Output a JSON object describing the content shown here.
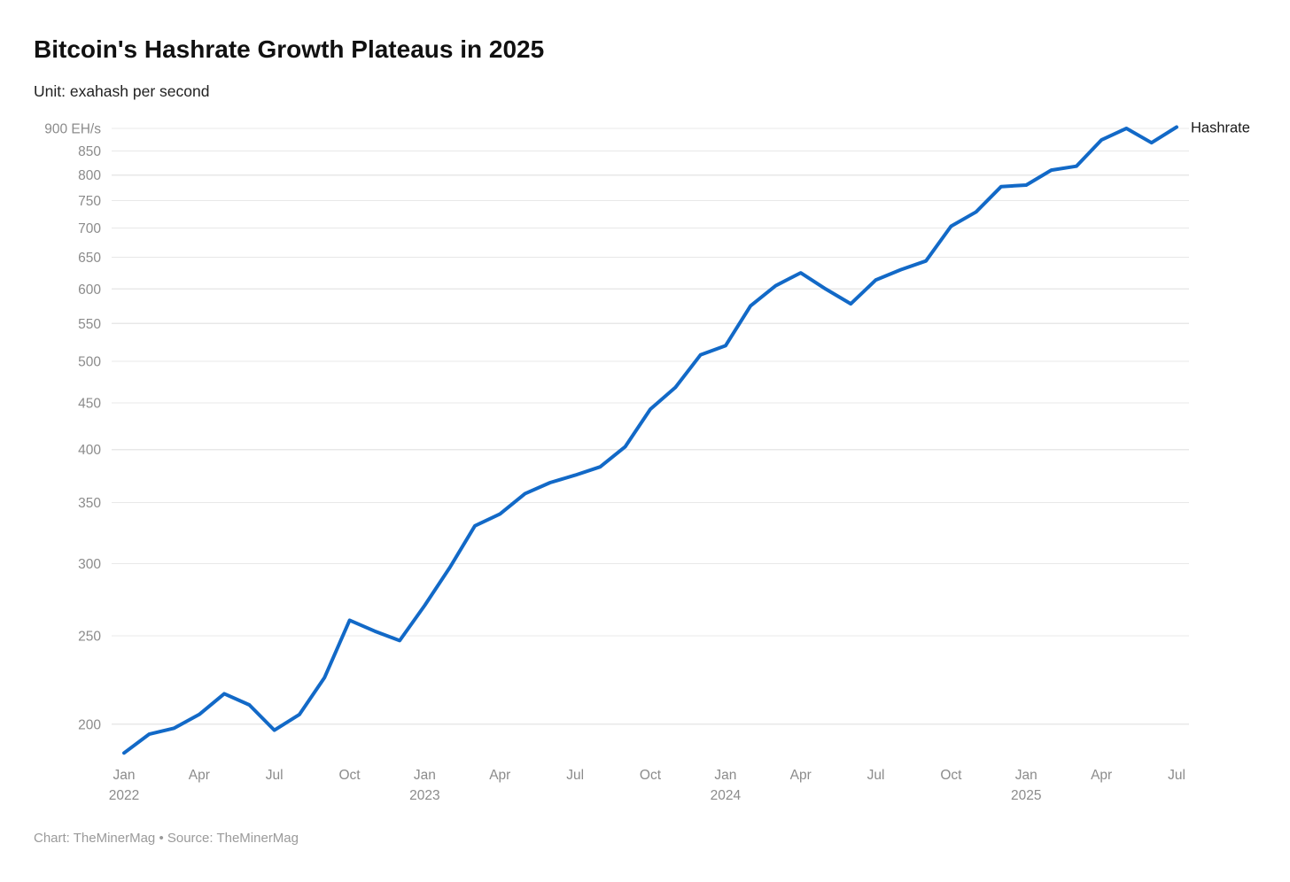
{
  "header": {
    "title": "Bitcoin's Hashrate Growth Plateaus in 2025",
    "subtitle": "Unit: exahash per second"
  },
  "footer": {
    "credit": "Chart: TheMinerMag • Source: TheMinerMag"
  },
  "chart_data": {
    "type": "line",
    "title": "Bitcoin's Hashrate Growth Plateaus in 2025",
    "unit_label": "Unit: exahash per second",
    "ylabel": "EH/s",
    "y_axis": {
      "scale": "log",
      "range_displayed": [
        200,
        900
      ],
      "grid": true,
      "ticks": [
        {
          "value": 900,
          "label": "900 EH/s"
        },
        {
          "value": 850,
          "label": "850"
        },
        {
          "value": 800,
          "label": "800"
        },
        {
          "value": 750,
          "label": "750"
        },
        {
          "value": 700,
          "label": "700"
        },
        {
          "value": 650,
          "label": "650"
        },
        {
          "value": 600,
          "label": "600"
        },
        {
          "value": 550,
          "label": "550"
        },
        {
          "value": 500,
          "label": "500"
        },
        {
          "value": 450,
          "label": "450"
        },
        {
          "value": 400,
          "label": "400"
        },
        {
          "value": 350,
          "label": "350"
        },
        {
          "value": 300,
          "label": "300"
        },
        {
          "value": 250,
          "label": "250"
        },
        {
          "value": 200,
          "label": "200"
        }
      ]
    },
    "x_axis": {
      "ticks": [
        {
          "label": "Jan",
          "year": "2022",
          "month_index": 0
        },
        {
          "label": "Apr",
          "month_index": 3
        },
        {
          "label": "Jul",
          "month_index": 6
        },
        {
          "label": "Oct",
          "month_index": 9
        },
        {
          "label": "Jan",
          "year": "2023",
          "month_index": 12
        },
        {
          "label": "Apr",
          "month_index": 15
        },
        {
          "label": "Jul",
          "month_index": 18
        },
        {
          "label": "Oct",
          "month_index": 21
        },
        {
          "label": "Jan",
          "year": "2024",
          "month_index": 24
        },
        {
          "label": "Apr",
          "month_index": 27
        },
        {
          "label": "Jul",
          "month_index": 30
        },
        {
          "label": "Oct",
          "month_index": 33
        },
        {
          "label": "Jan",
          "year": "2025",
          "month_index": 36
        },
        {
          "label": "Apr",
          "month_index": 39
        },
        {
          "label": "Jul",
          "month_index": 42
        }
      ]
    },
    "x": [
      "Jan 2022",
      "Feb 2022",
      "Mar 2022",
      "Apr 2022",
      "May 2022",
      "Jun 2022",
      "Jul 2022",
      "Aug 2022",
      "Sep 2022",
      "Oct 2022",
      "Nov 2022",
      "Dec 2022",
      "Jan 2023",
      "Feb 2023",
      "Mar 2023",
      "Apr 2023",
      "May 2023",
      "Jun 2023",
      "Jul 2023",
      "Aug 2023",
      "Sep 2023",
      "Oct 2023",
      "Nov 2023",
      "Dec 2023",
      "Jan 2024",
      "Feb 2024",
      "Mar 2024",
      "Apr 2024",
      "May 2024",
      "Jun 2024",
      "Jul 2024",
      "Aug 2024",
      "Sep 2024",
      "Oct 2024",
      "Nov 2024",
      "Dec 2024",
      "Jan 2025",
      "Feb 2025",
      "Mar 2025",
      "Apr 2025",
      "May 2025",
      "Jun 2025",
      "Jul 2025"
    ],
    "series": [
      {
        "name": "Hashrate",
        "values": [
          186,
          195,
          198,
          205,
          216,
          210,
          197,
          205,
          225,
          260,
          253,
          247,
          270,
          297,
          330,
          340,
          358,
          368,
          375,
          383,
          403,
          443,
          468,
          508,
          520,
          575,
          605,
          625,
          600,
          578,
          614,
          630,
          644,
          703,
          729,
          777,
          780,
          810,
          818,
          874,
          900,
          868,
          903
        ]
      }
    ],
    "legend": {
      "position": "line-end",
      "end_label": "Hashrate"
    },
    "colors": {
      "line": "#1269c7",
      "grid": "#e8e8e8",
      "tick_text": "#8b8b8b",
      "end_label_text": "#1a1a1a"
    }
  }
}
